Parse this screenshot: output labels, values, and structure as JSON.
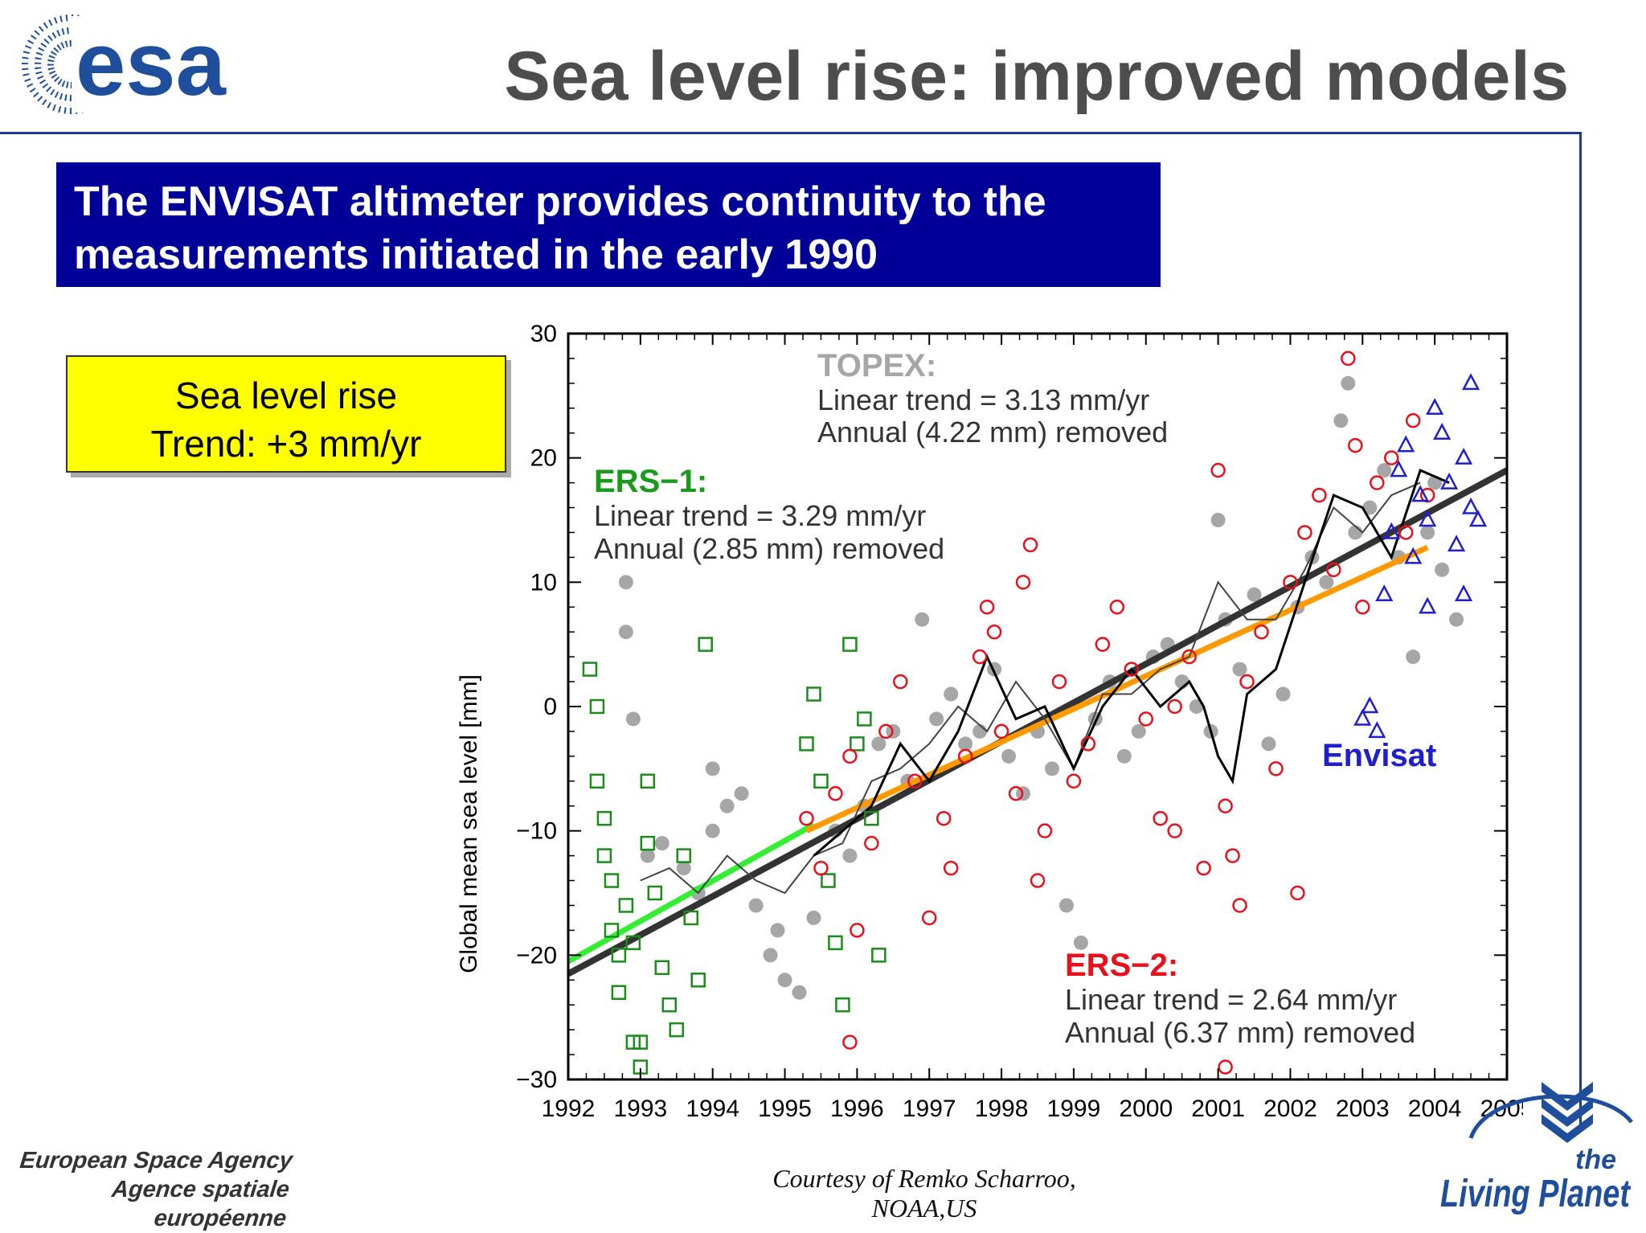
{
  "slide": {
    "title": "Sea level rise: improved models",
    "banner_line1": "The ENVISAT altimeter provides continuity to the",
    "banner_line2": "measurements initiated in the early 1990",
    "trend_box_line1": "Sea level rise",
    "trend_box_line2": "Trend: +3 mm/yr",
    "courtesy": "Courtesy of Remko Scharroo, NOAA,US",
    "agency_line1": "European Space Agency",
    "agency_line2": "Agence spatiale européenne",
    "logo_text": "esa",
    "planet_logo_line1": "the",
    "planet_logo_line2": "Living Planet"
  },
  "colors": {
    "title": "#4d4d4d",
    "banner_bg": "#000099",
    "trend_box_bg": "#ffff00",
    "frame": "#1f3a93",
    "logo": "#1f4e9c",
    "topex": "#a6a6a6",
    "ers1": "#1a8c1a",
    "ers2": "#e8101a",
    "envisat": "#1f1fcc",
    "trend_dark": "#333333",
    "trend_green": "#33ee33",
    "trend_orange": "#ff9900"
  },
  "chart_data": {
    "type": "scatter",
    "xlabel": "",
    "ylabel": "Global mean sea level [mm]",
    "xlim": [
      1992,
      2005
    ],
    "ylim": [
      -30,
      30
    ],
    "x_ticks": [
      "1992",
      "1993",
      "1994",
      "1995",
      "1996",
      "1997",
      "1998",
      "1999",
      "2000",
      "2001",
      "2002",
      "2003",
      "2004",
      "2005"
    ],
    "y_ticks": [
      "30",
      "20",
      "10",
      "0",
      "−10",
      "−20",
      "−30"
    ],
    "grid": false,
    "annotations": {
      "topex_title": "TOPEX:",
      "topex_line1": "Linear trend = 3.13 mm/yr",
      "topex_line2": "Annual (4.22 mm) removed",
      "ers1_title": "ERS−1:",
      "ers1_line1": "Linear trend = 3.29 mm/yr",
      "ers1_line2": "Annual (2.85 mm) removed",
      "ers2_title": "ERS−2:",
      "ers2_line1": "Linear trend = 2.64 mm/yr",
      "ers2_line2": "Annual (6.37 mm) removed",
      "envisat_label": "Envisat"
    },
    "trend_lines": [
      {
        "name": "TOPEX",
        "x": [
          1992.0,
          2005.0
        ],
        "y": [
          -21.5,
          19.0
        ]
      },
      {
        "name": "ERS-1",
        "x": [
          1992.0,
          1995.4
        ],
        "y": [
          -20.5,
          -9.5
        ]
      },
      {
        "name": "ERS-2",
        "x": [
          1995.3,
          2003.9
        ],
        "y": [
          -10.0,
          12.8
        ]
      }
    ],
    "series": [
      {
        "name": "TOPEX",
        "marker": "dot",
        "points": [
          [
            1992.8,
            10
          ],
          [
            1992.8,
            6
          ],
          [
            1992.9,
            -1
          ],
          [
            1993.1,
            -12
          ],
          [
            1993.3,
            -11
          ],
          [
            1993.6,
            -13
          ],
          [
            1993.8,
            -15
          ],
          [
            1994.0,
            -10
          ],
          [
            1994.0,
            -5
          ],
          [
            1994.2,
            -8
          ],
          [
            1994.4,
            -7
          ],
          [
            1994.6,
            -16
          ],
          [
            1994.8,
            -20
          ],
          [
            1994.9,
            -18
          ],
          [
            1995.0,
            -22
          ],
          [
            1995.2,
            -23
          ],
          [
            1995.4,
            -17
          ],
          [
            1995.7,
            -10
          ],
          [
            1995.9,
            -12
          ],
          [
            1996.1,
            -8
          ],
          [
            1996.3,
            -3
          ],
          [
            1996.5,
            -2
          ],
          [
            1996.7,
            -6
          ],
          [
            1996.9,
            7
          ],
          [
            1997.1,
            -1
          ],
          [
            1997.3,
            1
          ],
          [
            1997.5,
            -3
          ],
          [
            1997.7,
            -2
          ],
          [
            1997.9,
            3
          ],
          [
            1998.1,
            -4
          ],
          [
            1998.3,
            -7
          ],
          [
            1998.5,
            -2
          ],
          [
            1998.7,
            -5
          ],
          [
            1998.9,
            -16
          ],
          [
            1999.1,
            -19
          ],
          [
            1999.3,
            -1
          ],
          [
            1999.5,
            2
          ],
          [
            1999.7,
            -4
          ],
          [
            1999.9,
            -2
          ],
          [
            2000.1,
            4
          ],
          [
            2000.3,
            5
          ],
          [
            2000.5,
            2
          ],
          [
            2000.7,
            0
          ],
          [
            2000.9,
            -2
          ],
          [
            2001.0,
            15
          ],
          [
            2001.1,
            7
          ],
          [
            2001.3,
            3
          ],
          [
            2001.5,
            9
          ],
          [
            2001.7,
            -3
          ],
          [
            2001.9,
            1
          ],
          [
            2002.1,
            8
          ],
          [
            2002.3,
            12
          ],
          [
            2002.5,
            10
          ],
          [
            2002.7,
            23
          ],
          [
            2002.8,
            26
          ],
          [
            2002.9,
            14
          ],
          [
            2003.1,
            16
          ],
          [
            2003.3,
            19
          ],
          [
            2003.5,
            12
          ],
          [
            2003.7,
            4
          ],
          [
            2003.9,
            14
          ],
          [
            2004.1,
            11
          ],
          [
            2004.3,
            7
          ],
          [
            2004.0,
            18
          ]
        ]
      },
      {
        "name": "ERS-1",
        "marker": "square",
        "points": [
          [
            1992.3,
            3
          ],
          [
            1992.4,
            0
          ],
          [
            1992.4,
            -6
          ],
          [
            1992.5,
            -9
          ],
          [
            1992.5,
            -12
          ],
          [
            1992.6,
            -14
          ],
          [
            1992.6,
            -18
          ],
          [
            1992.7,
            -20
          ],
          [
            1992.7,
            -23
          ],
          [
            1992.8,
            -16
          ],
          [
            1992.9,
            -19
          ],
          [
            1992.9,
            -27
          ],
          [
            1993.0,
            -27
          ],
          [
            1993.0,
            -29
          ],
          [
            1993.1,
            -6
          ],
          [
            1993.1,
            -11
          ],
          [
            1993.2,
            -15
          ],
          [
            1993.3,
            -21
          ],
          [
            1993.4,
            -24
          ],
          [
            1993.5,
            -26
          ],
          [
            1993.6,
            -12
          ],
          [
            1993.7,
            -17
          ],
          [
            1993.8,
            -22
          ],
          [
            1993.9,
            5
          ],
          [
            1995.3,
            -3
          ],
          [
            1995.4,
            1
          ],
          [
            1995.5,
            -6
          ],
          [
            1995.6,
            -14
          ],
          [
            1995.7,
            -19
          ],
          [
            1995.8,
            -24
          ],
          [
            1995.9,
            5
          ],
          [
            1996.0,
            -3
          ],
          [
            1996.1,
            -1
          ],
          [
            1996.2,
            -9
          ],
          [
            1996.3,
            -20
          ]
        ]
      },
      {
        "name": "ERS-2",
        "marker": "circle",
        "points": [
          [
            1995.3,
            -9
          ],
          [
            1995.5,
            -13
          ],
          [
            1995.7,
            -7
          ],
          [
            1995.9,
            -4
          ],
          [
            1996.0,
            -18
          ],
          [
            1996.2,
            -11
          ],
          [
            1996.4,
            -2
          ],
          [
            1996.6,
            2
          ],
          [
            1996.8,
            -6
          ],
          [
            1997.0,
            -17
          ],
          [
            1997.2,
            -9
          ],
          [
            1997.3,
            -13
          ],
          [
            1997.5,
            -4
          ],
          [
            1997.7,
            4
          ],
          [
            1997.8,
            8
          ],
          [
            1997.9,
            6
          ],
          [
            1998.0,
            -2
          ],
          [
            1998.2,
            -7
          ],
          [
            1998.3,
            10
          ],
          [
            1998.4,
            13
          ],
          [
            1998.5,
            -14
          ],
          [
            1998.6,
            -10
          ],
          [
            1998.8,
            2
          ],
          [
            1999.0,
            -6
          ],
          [
            1999.2,
            -3
          ],
          [
            1999.4,
            5
          ],
          [
            1999.6,
            8
          ],
          [
            1999.8,
            3
          ],
          [
            2000.0,
            -1
          ],
          [
            2000.2,
            -9
          ],
          [
            2000.4,
            0
          ],
          [
            2000.6,
            4
          ],
          [
            2000.8,
            -13
          ],
          [
            2001.0,
            19
          ],
          [
            2001.1,
            -8
          ],
          [
            2001.2,
            -12
          ],
          [
            2001.3,
            -16
          ],
          [
            2001.4,
            2
          ],
          [
            2001.6,
            6
          ],
          [
            2001.8,
            -5
          ],
          [
            2002.0,
            10
          ],
          [
            2002.1,
            -15
          ],
          [
            2002.2,
            14
          ],
          [
            2002.4,
            17
          ],
          [
            2002.6,
            11
          ],
          [
            2002.8,
            28
          ],
          [
            2002.9,
            21
          ],
          [
            2003.0,
            8
          ],
          [
            2003.2,
            18
          ],
          [
            2003.4,
            20
          ],
          [
            2003.6,
            14
          ],
          [
            2003.7,
            23
          ],
          [
            2003.9,
            17
          ],
          [
            2001.1,
            -29
          ],
          [
            1995.9,
            -27
          ],
          [
            2000.4,
            -10
          ]
        ]
      },
      {
        "name": "Envisat",
        "marker": "triangle",
        "points": [
          [
            2003.0,
            -1
          ],
          [
            2003.1,
            0
          ],
          [
            2003.2,
            -2
          ],
          [
            2003.3,
            9
          ],
          [
            2003.4,
            14
          ],
          [
            2003.5,
            19
          ],
          [
            2003.6,
            21
          ],
          [
            2003.7,
            12
          ],
          [
            2003.8,
            17
          ],
          [
            2003.9,
            8
          ],
          [
            2004.0,
            24
          ],
          [
            2004.1,
            22
          ],
          [
            2004.2,
            18
          ],
          [
            2004.3,
            13
          ],
          [
            2004.4,
            20
          ],
          [
            2004.5,
            16
          ],
          [
            2004.6,
            15
          ],
          [
            2004.5,
            26
          ],
          [
            2004.4,
            9
          ],
          [
            2003.9,
            15
          ]
        ]
      },
      {
        "name": "running-mean-topex",
        "marker": "line-gray",
        "points": [
          [
            1993.0,
            -14
          ],
          [
            1993.4,
            -13
          ],
          [
            1993.8,
            -15
          ],
          [
            1994.2,
            -12
          ],
          [
            1994.6,
            -14
          ],
          [
            1995.0,
            -15
          ],
          [
            1995.4,
            -12
          ],
          [
            1995.8,
            -11
          ],
          [
            1996.2,
            -6
          ],
          [
            1996.6,
            -5
          ],
          [
            1997.0,
            -3
          ],
          [
            1997.4,
            0
          ],
          [
            1997.8,
            -2
          ],
          [
            1998.2,
            2
          ],
          [
            1998.6,
            -1
          ],
          [
            1999.0,
            -5
          ],
          [
            1999.4,
            1
          ],
          [
            1999.8,
            1
          ],
          [
            2000.2,
            3
          ],
          [
            2000.6,
            4
          ],
          [
            2001.0,
            10
          ],
          [
            2001.4,
            7
          ],
          [
            2001.8,
            7
          ],
          [
            2002.2,
            11
          ],
          [
            2002.6,
            16
          ],
          [
            2003.0,
            14
          ],
          [
            2003.4,
            17
          ],
          [
            2003.8,
            18
          ]
        ]
      },
      {
        "name": "running-mean-ers",
        "marker": "line-black",
        "points": [
          [
            1995.4,
            -12
          ],
          [
            1995.8,
            -10
          ],
          [
            1996.2,
            -8
          ],
          [
            1996.6,
            -3
          ],
          [
            1997.0,
            -6
          ],
          [
            1997.4,
            -2
          ],
          [
            1997.8,
            4
          ],
          [
            1998.2,
            -1
          ],
          [
            1998.6,
            0
          ],
          [
            1999.0,
            -5
          ],
          [
            1999.4,
            0
          ],
          [
            1999.8,
            3
          ],
          [
            2000.2,
            0
          ],
          [
            2000.6,
            2
          ],
          [
            2000.8,
            0
          ],
          [
            2001.0,
            -4
          ],
          [
            2001.2,
            -6
          ],
          [
            2001.4,
            1
          ],
          [
            2001.8,
            3
          ],
          [
            2002.2,
            10
          ],
          [
            2002.6,
            17
          ],
          [
            2003.0,
            16
          ],
          [
            2003.4,
            12
          ],
          [
            2003.8,
            19
          ],
          [
            2004.2,
            18
          ]
        ]
      }
    ]
  }
}
